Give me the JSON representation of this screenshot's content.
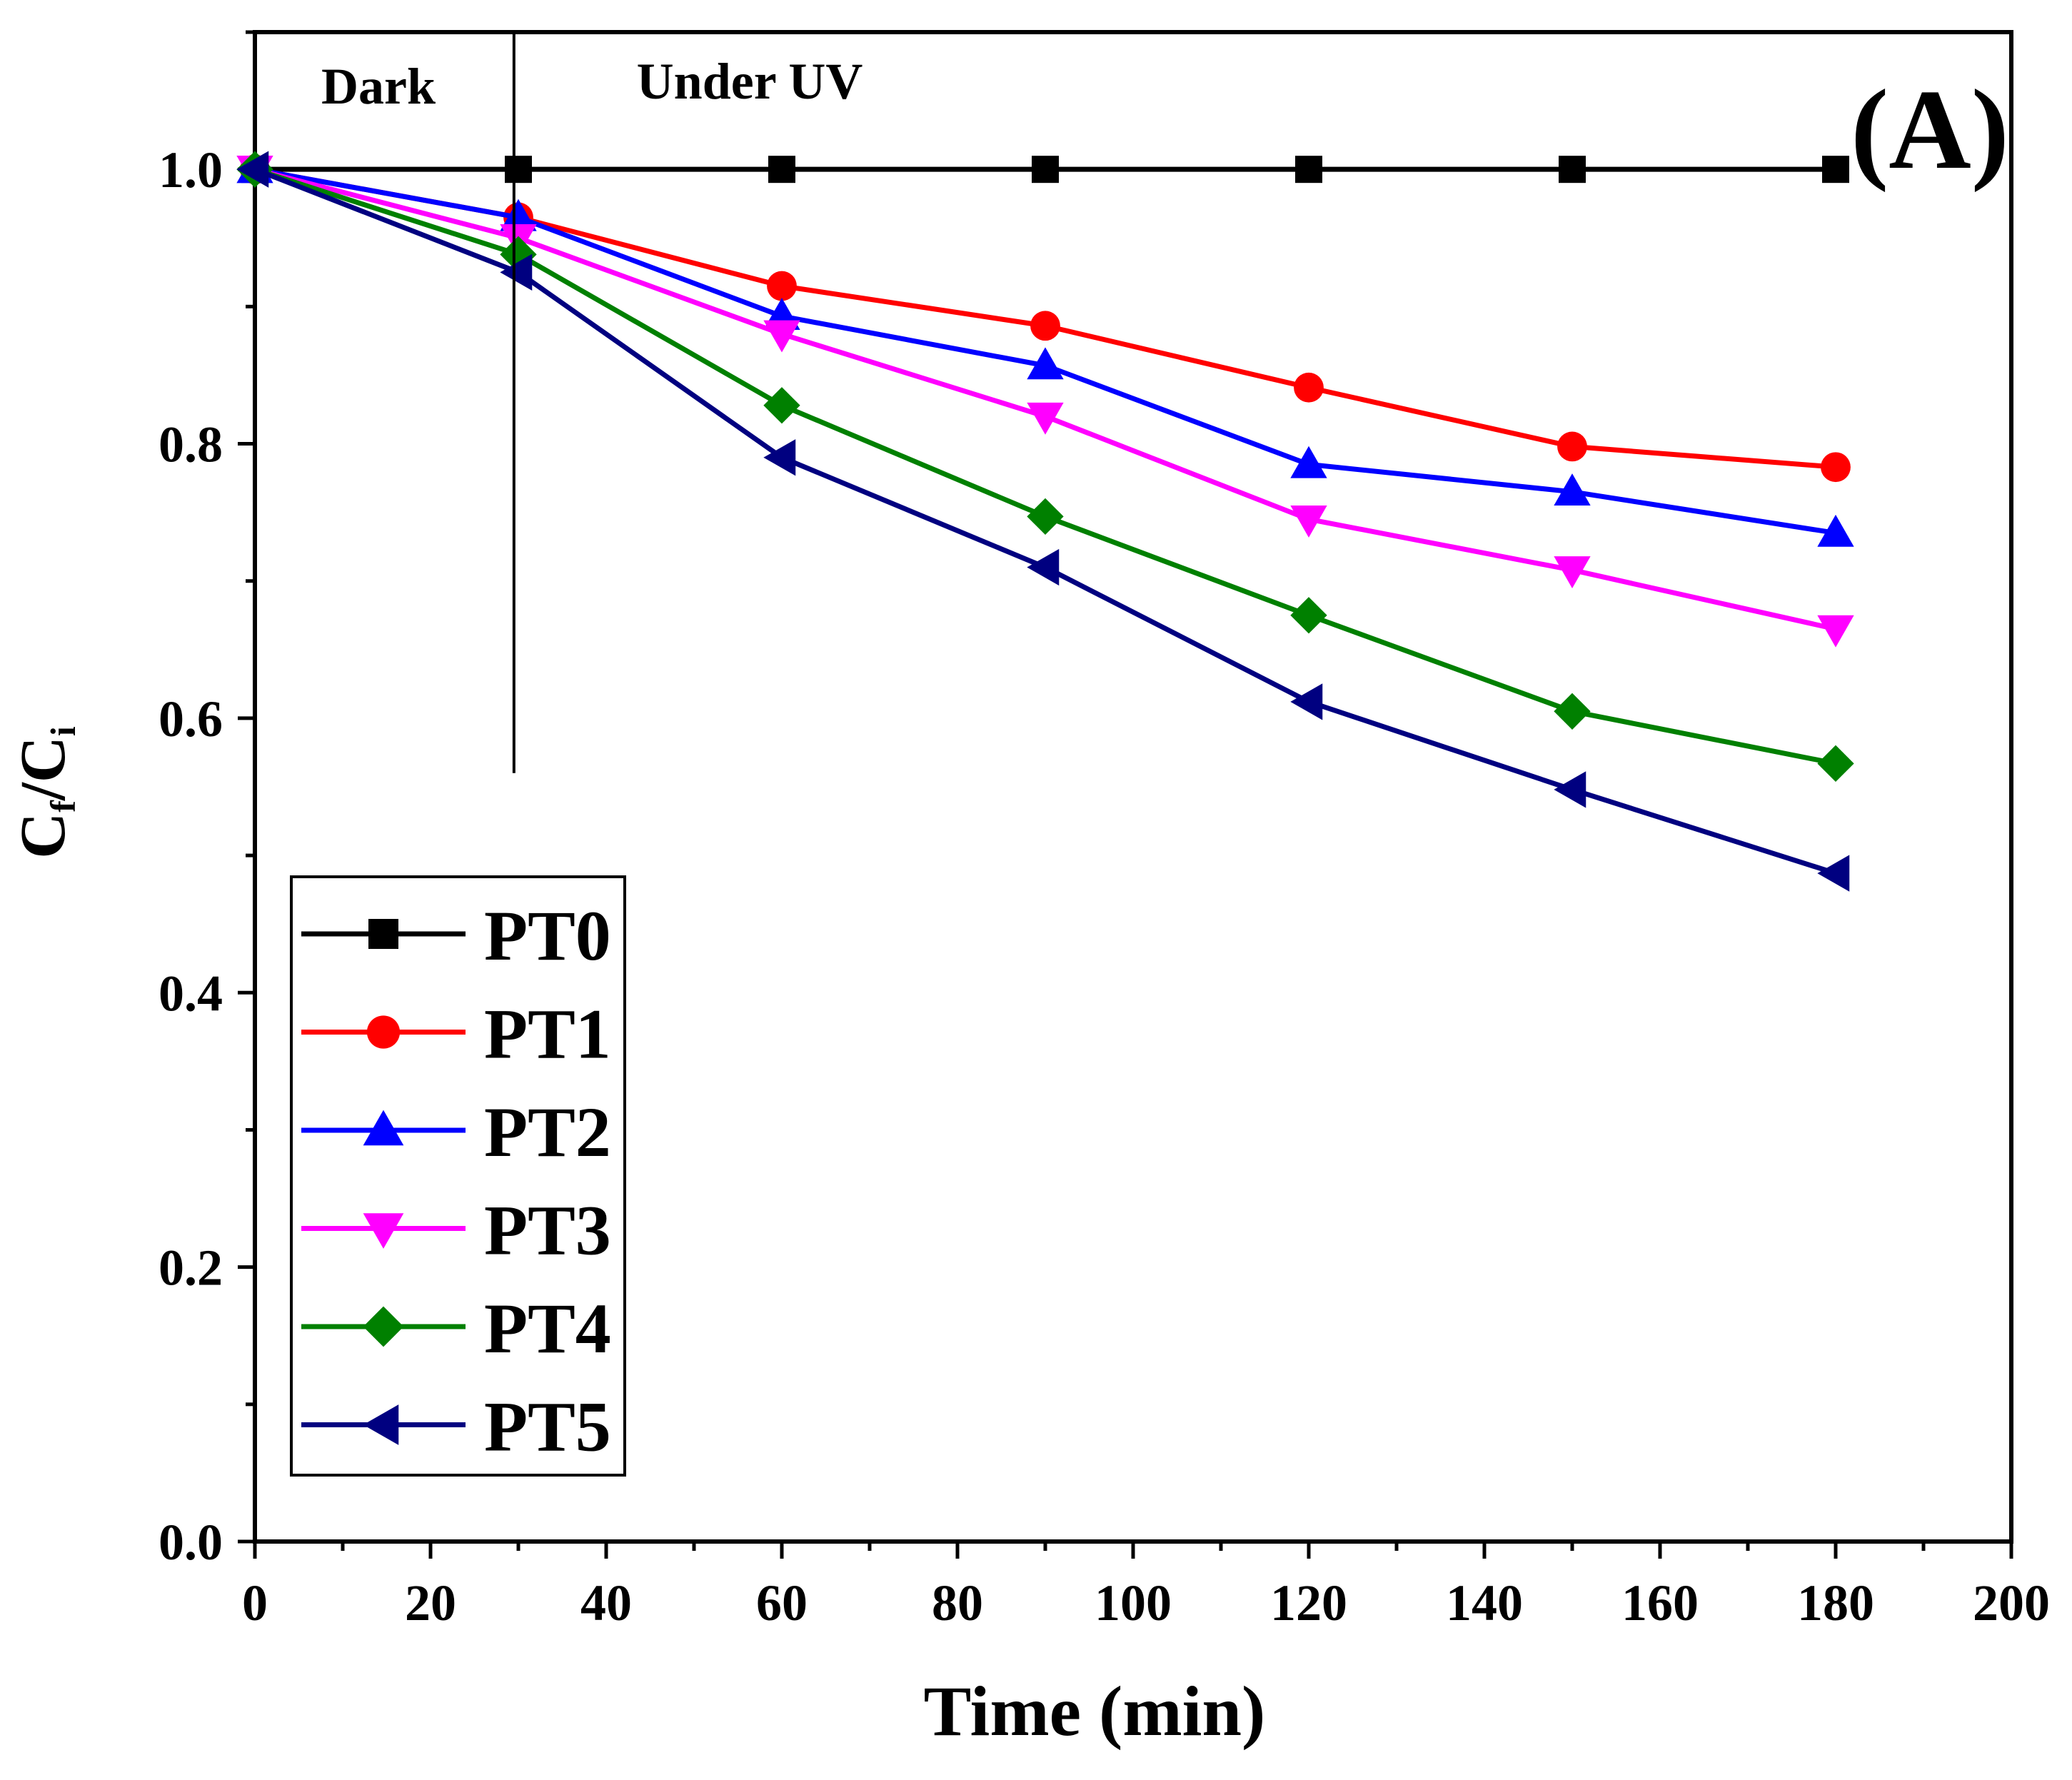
{
  "chart_data": {
    "type": "line",
    "title": "",
    "panel_label": "(A)",
    "xlabel": "Time (min)",
    "ylabel": {
      "main": "C",
      "sub1": "f",
      "slash": "/",
      "main2": "C",
      "sub2": "i"
    },
    "xlim": [
      0,
      200
    ],
    "ylim": [
      0.0,
      1.1
    ],
    "x_ticks": [
      "0",
      "20",
      "40",
      "60",
      "80",
      "100",
      "120",
      "140",
      "160",
      "180",
      "200"
    ],
    "x_tick_values": [
      0,
      20,
      40,
      60,
      80,
      100,
      120,
      140,
      160,
      180,
      200
    ],
    "y_ticks": [
      "0.0",
      "0.2",
      "0.4",
      "0.6",
      "0.8",
      "1.0"
    ],
    "y_tick_values": [
      0.0,
      0.2,
      0.4,
      0.6,
      0.8,
      1.0
    ],
    "grid": false,
    "legend_position": "bottom-left",
    "annotations": {
      "dark": "Dark",
      "uv": "Under UV",
      "divider_x": 29.5,
      "divider_y_bottom": 0.56
    },
    "x": [
      0,
      30,
      60,
      90,
      120,
      150,
      180
    ],
    "series": [
      {
        "name": "PT0",
        "color": "#000000",
        "marker": "square",
        "values": [
          1.0,
          1.0,
          1.0,
          1.0,
          1.0,
          1.0,
          1.0
        ]
      },
      {
        "name": "PT1",
        "color": "#ff0000",
        "marker": "circle",
        "values": [
          1.0,
          0.965,
          0.915,
          0.886,
          0.841,
          0.798,
          0.783
        ]
      },
      {
        "name": "PT2",
        "color": "#0000ff",
        "marker": "triangle-up",
        "values": [
          1.0,
          0.965,
          0.893,
          0.857,
          0.785,
          0.765,
          0.735
        ]
      },
      {
        "name": "PT3",
        "color": "#ff00ff",
        "marker": "triangle-down",
        "values": [
          1.0,
          0.95,
          0.88,
          0.82,
          0.745,
          0.708,
          0.665
        ]
      },
      {
        "name": "PT4",
        "color": "#008000",
        "marker": "diamond",
        "values": [
          1.0,
          0.938,
          0.828,
          0.747,
          0.675,
          0.605,
          0.567
        ]
      },
      {
        "name": "PT5",
        "color": "#000080",
        "marker": "triangle-left",
        "values": [
          1.0,
          0.925,
          0.79,
          0.71,
          0.612,
          0.548,
          0.487
        ]
      }
    ]
  }
}
